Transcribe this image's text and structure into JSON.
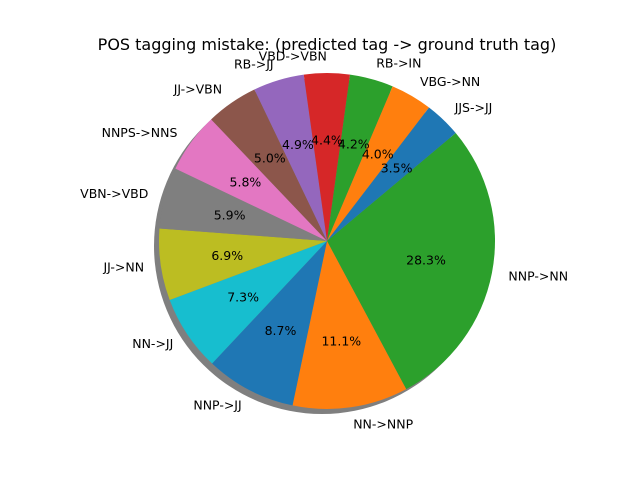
{
  "chart_data": {
    "type": "pie",
    "title": "POS tagging mistake: (predicted tag -> ground truth tag)",
    "slices": [
      {
        "label": "NNP->NN",
        "value": 28.3,
        "pct_label": "28.3%",
        "color": "#2ca02c"
      },
      {
        "label": "NN->NNP",
        "value": 11.1,
        "pct_label": "11.1%",
        "color": "#ff7f0e"
      },
      {
        "label": "NNP->JJ",
        "value": 8.7,
        "pct_label": "8.7%",
        "color": "#1f77b4"
      },
      {
        "label": "NN->JJ",
        "value": 7.3,
        "pct_label": "7.3%",
        "color": "#17becf"
      },
      {
        "label": "JJ->NN",
        "value": 6.9,
        "pct_label": "6.9%",
        "color": "#bcbd22"
      },
      {
        "label": "VBN->VBD",
        "value": 5.9,
        "pct_label": "5.9%",
        "color": "#7f7f7f"
      },
      {
        "label": "NNPS->NNS",
        "value": 5.8,
        "pct_label": "5.8%",
        "color": "#e377c2"
      },
      {
        "label": "JJ->VBN",
        "value": 5.0,
        "pct_label": "5.0%",
        "color": "#8c564b"
      },
      {
        "label": "RB->JJ",
        "value": 4.9,
        "pct_label": "4.9%",
        "color": "#9467bd"
      },
      {
        "label": "VBD->VBN",
        "value": 4.4,
        "pct_label": "4.4%",
        "color": "#d62728"
      },
      {
        "label": "RB->IN",
        "value": 4.2,
        "pct_label": "4.2%",
        "color": "#2ca02c"
      },
      {
        "label": "VBG->NN",
        "value": 4.0,
        "pct_label": "4.0%",
        "color": "#ff7f0e"
      },
      {
        "label": "JJS->JJ",
        "value": 3.5,
        "pct_label": "3.5%",
        "color": "#1f77b4"
      }
    ],
    "start_angle": 0,
    "direction": "clockwise",
    "shadow": true,
    "legend": "none"
  }
}
